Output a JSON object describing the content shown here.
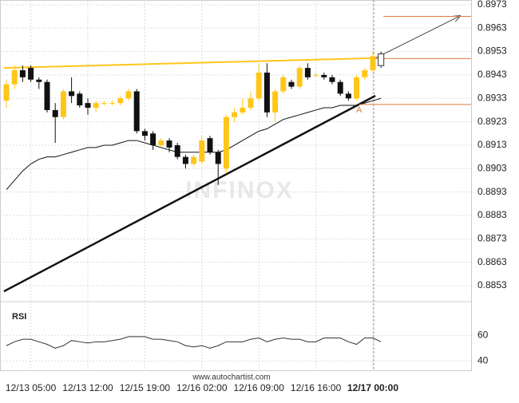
{
  "chart_data": {
    "type": "candlestick",
    "categories": [
      null,
      null,
      null,
      "12/13 05:00",
      null,
      null,
      null,
      null,
      null,
      null,
      "12/13 12:00",
      null,
      null,
      null,
      null,
      null,
      null,
      "12/15 19:00",
      null,
      null,
      null,
      null,
      null,
      null,
      "12/16 02:00",
      null,
      null,
      null,
      null,
      null,
      null,
      "12/16 09:00",
      null,
      null,
      null,
      null,
      null,
      null,
      "12/16 16:00",
      null,
      null,
      null,
      null,
      null,
      null,
      "12/17 00:00",
      null
    ],
    "bold_category": 45,
    "open": [
      0.8932,
      0.8939,
      0.8945,
      0.8946,
      0.8941,
      0.894,
      0.8928,
      0.8925,
      0.8936,
      0.8935,
      0.8931,
      0.8929,
      0.8931,
      0.8931,
      0.8931,
      0.8933,
      0.8936,
      0.8919,
      0.8918,
      0.8913,
      0.8915,
      0.8913,
      0.8908,
      0.8905,
      0.8906,
      0.8916,
      0.891,
      0.8903,
      0.8925,
      0.8927,
      0.8929,
      0.8933,
      0.8944,
      0.8927,
      0.8936,
      0.894,
      0.8938,
      0.8946,
      0.8943,
      0.8943,
      0.8942,
      0.894,
      0.8935,
      0.8933,
      0.8942,
      0.8945,
      0.8947
    ],
    "high": [
      0.8941,
      0.8947,
      0.8947,
      0.8947,
      0.8942,
      0.8941,
      0.8931,
      0.8937,
      0.8942,
      0.8936,
      0.8933,
      0.8932,
      0.8932,
      0.8932,
      0.8934,
      0.8937,
      0.8937,
      0.892,
      0.8919,
      0.8916,
      0.8916,
      0.8914,
      0.8909,
      0.8909,
      0.8917,
      0.8917,
      0.8911,
      0.8926,
      0.8929,
      0.8933,
      0.8936,
      0.8948,
      0.8948,
      0.8937,
      0.8943,
      0.8941,
      0.8947,
      0.8948,
      0.8944,
      0.8944,
      0.8943,
      0.8941,
      0.8936,
      0.8943,
      0.8946,
      0.8953,
      0.8953
    ],
    "low": [
      0.8929,
      0.8937,
      0.894,
      0.894,
      0.8937,
      0.8927,
      0.8914,
      0.8924,
      0.8931,
      0.8929,
      0.8926,
      0.8927,
      0.893,
      0.893,
      0.893,
      0.8932,
      0.8918,
      0.8915,
      0.8911,
      0.8912,
      0.891,
      0.8907,
      0.8903,
      0.8904,
      0.8905,
      0.8909,
      0.8896,
      0.8901,
      0.8923,
      0.8926,
      0.8928,
      0.8932,
      0.8925,
      0.8923,
      0.8935,
      0.8937,
      0.8937,
      0.8941,
      0.8942,
      0.8941,
      0.8939,
      0.8934,
      0.8932,
      0.8932,
      0.8941,
      0.8944,
      0.8946
    ],
    "close": [
      0.8939,
      0.8945,
      0.8942,
      0.8941,
      0.894,
      0.8928,
      0.8925,
      0.8936,
      0.8934,
      0.893,
      0.8929,
      0.8931,
      0.8931,
      0.8931,
      0.8933,
      0.8936,
      0.8919,
      0.8917,
      0.8913,
      0.8915,
      0.8912,
      0.8908,
      0.8905,
      0.8908,
      0.8915,
      0.891,
      0.8905,
      0.8925,
      0.8927,
      0.8929,
      0.8933,
      0.8944,
      0.8927,
      0.8936,
      0.8942,
      0.8938,
      0.8946,
      0.8942,
      0.8943,
      0.8942,
      0.894,
      0.8935,
      0.8933,
      0.8942,
      0.8945,
      0.8951,
      0.8952
    ],
    "up_color": "#ffc61a",
    "down_color": "#111111",
    "current_color": "#ffffff",
    "moving_average": {
      "color": "#111111",
      "values": [
        0.8894,
        0.8898,
        0.8902,
        0.8905,
        0.8907,
        0.8908,
        0.8908,
        0.8909,
        0.891,
        0.8911,
        0.8912,
        0.8912,
        0.8913,
        0.8913,
        0.8914,
        0.8915,
        0.8915,
        0.8914,
        0.8913,
        0.8912,
        0.8911,
        0.891,
        0.891,
        0.891,
        0.891,
        0.891,
        0.891,
        0.8911,
        0.8913,
        0.8915,
        0.8917,
        0.8919,
        0.892,
        0.8922,
        0.8924,
        0.8925,
        0.8926,
        0.8927,
        0.8928,
        0.8929,
        0.8929,
        0.893,
        0.893,
        0.893,
        0.8931,
        0.8932,
        0.8933
      ]
    },
    "ylim": [
      0.88479,
      0.8975
    ],
    "yticks": [
      0.8853,
      0.8863,
      0.8873,
      0.8883,
      0.8893,
      0.8903,
      0.8913,
      0.8923,
      0.8933,
      0.8943,
      0.8953,
      0.8963,
      0.8973
    ],
    "grid": true,
    "trendlines": [
      {
        "color": "#111111",
        "width": 2.5,
        "x": [
          -0.3,
          45.3
        ],
        "y": [
          0.88506,
          0.89341
        ]
      },
      {
        "color": "#ffc61a",
        "width": 2,
        "x": [
          -0.3,
          45.3
        ],
        "y": [
          0.8946,
          0.89502
        ]
      },
      {
        "color": "#444444",
        "width": 1,
        "x": [
          45.3,
          55.7
        ],
        "y": [
          0.89502,
          0.89682
        ],
        "arrow": true
      }
    ],
    "levels": [
      {
        "color": "#e07838",
        "x": 46.3,
        "y": 0.8968
      },
      {
        "color": "#e07838",
        "x": 45.3,
        "y": 0.895
      },
      {
        "color": "#e07838",
        "x": 43.3,
        "y": 0.89304
      }
    ],
    "vertical_line": 45.1,
    "point": {
      "label": "A",
      "color": "#e07838",
      "x": 43.3,
      "y": 0.8928
    },
    "watermark": "INFINOX",
    "footer": "www.autochartist.com",
    "rsi": {
      "label": "RSI",
      "color": "#333333",
      "values": [
        52,
        55,
        57,
        57,
        55,
        53,
        50,
        52,
        56,
        55,
        54,
        55,
        55,
        56,
        57,
        59,
        59,
        59,
        57,
        57,
        56,
        55,
        52,
        51,
        52,
        50,
        52,
        55,
        55,
        55,
        57,
        58,
        55,
        57,
        58,
        57,
        57,
        55,
        55,
        58,
        58,
        58,
        55,
        53,
        58,
        58,
        55
      ],
      "ylim": [
        34,
        82
      ],
      "yticks": [
        40,
        60
      ]
    }
  }
}
